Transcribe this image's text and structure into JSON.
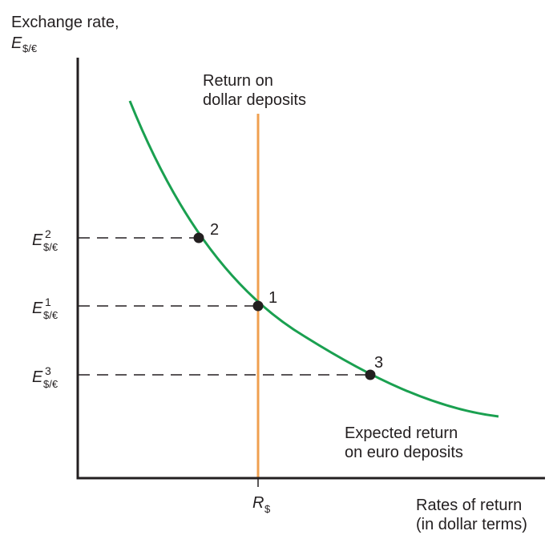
{
  "y_axis": {
    "label_line1": "Exchange rate,",
    "label_var": "E",
    "label_sub": "$/€"
  },
  "x_axis": {
    "label_line1": "Rates of return",
    "label_line2": "(in dollar terms)",
    "tick_var": "R",
    "tick_sub": "$"
  },
  "dollar_curve": {
    "label_line1": "Return on",
    "label_line2": "dollar deposits",
    "color": "#f0a050"
  },
  "euro_curve": {
    "label_line1": "Expected return",
    "label_line2": "on euro deposits",
    "color": "#1aa050"
  },
  "levels": [
    {
      "var": "E",
      "sup": "2",
      "sub": "$/€",
      "point_label": "2"
    },
    {
      "var": "E",
      "sup": "1",
      "sub": "$/€",
      "point_label": "1"
    },
    {
      "var": "E",
      "sup": "3",
      "sub": "$/€",
      "point_label": "3"
    }
  ]
}
